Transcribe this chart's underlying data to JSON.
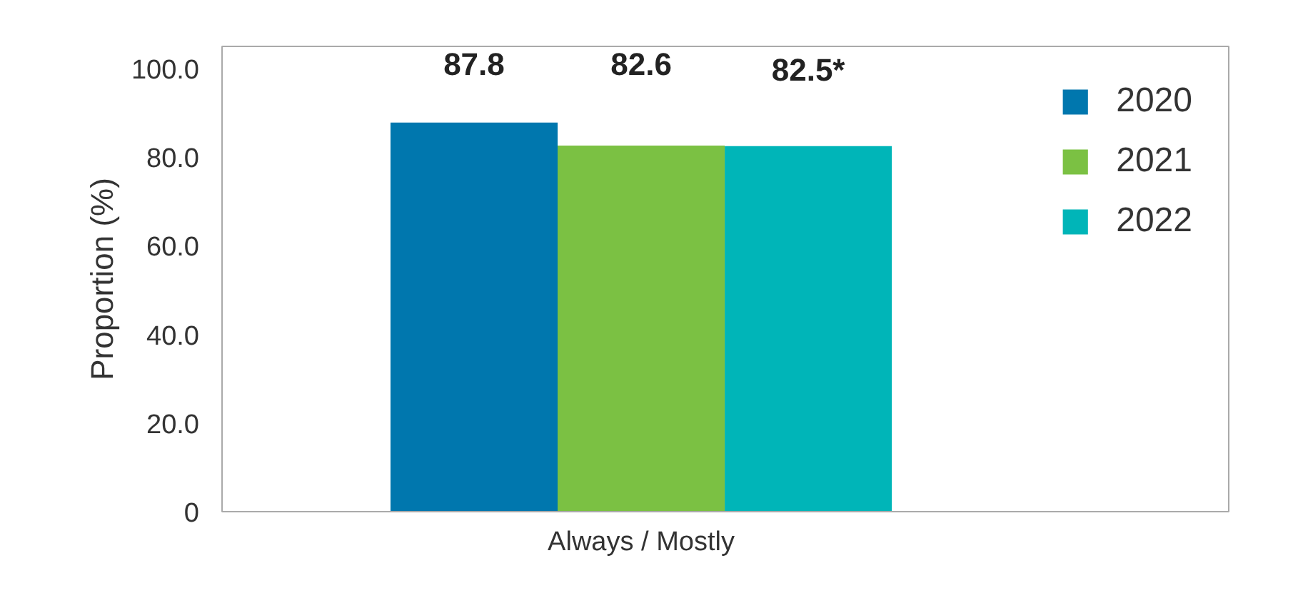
{
  "chart_data": {
    "type": "bar",
    "ylabel": "Proportion (%)",
    "categories": [
      "Always / Mostly"
    ],
    "series": [
      {
        "name": "2020",
        "color": "#0077ae",
        "values": [
          87.8
        ],
        "value_labels": [
          "87.8"
        ]
      },
      {
        "name": "2021",
        "color": "#7bc143",
        "values": [
          82.6
        ],
        "value_labels": [
          "82.6"
        ]
      },
      {
        "name": "2022",
        "color": "#00b5b8",
        "values": [
          82.5
        ],
        "value_labels": [
          "82.5*"
        ]
      }
    ],
    "ylim": [
      0,
      105
    ],
    "yticks": [
      {
        "value": 0,
        "label": "0"
      },
      {
        "value": 20,
        "label": "20.0"
      },
      {
        "value": 40,
        "label": "40.0"
      },
      {
        "value": 60,
        "label": "60.0"
      },
      {
        "value": 80,
        "label": "80.0"
      },
      {
        "value": 100,
        "label": "100.0"
      }
    ],
    "grid": false,
    "legend": "top right"
  }
}
